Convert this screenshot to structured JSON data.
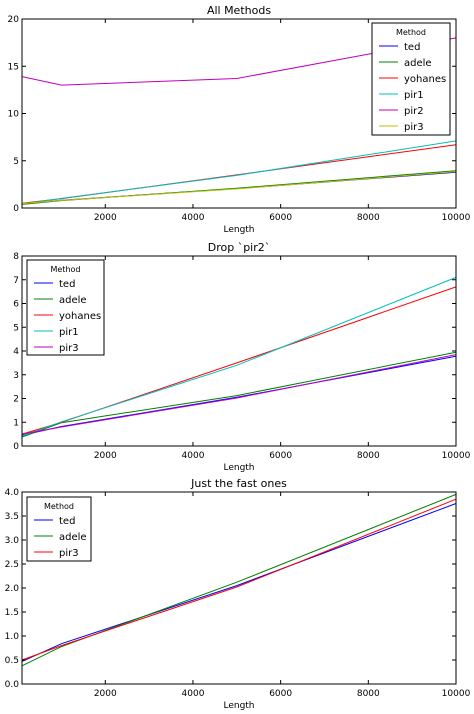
{
  "colors": {
    "ted": "#0000ff",
    "adele": "#008000",
    "yohanes": "#ff0000",
    "pir1": "#00bfbf",
    "pir2": "#bf00bf",
    "pir3": "#bfbf00",
    "pir3_alt": "#bf00bf",
    "pir3_fast": "#ff0000"
  },
  "chart_data": [
    {
      "type": "line",
      "title": "All Methods",
      "xlabel": "Length",
      "ylabel": "",
      "xlim": [
        100,
        10000
      ],
      "ylim": [
        0,
        20
      ],
      "xticks": [
        2000,
        4000,
        6000,
        8000,
        10000
      ],
      "yticks": [
        0,
        5,
        10,
        15,
        20
      ],
      "legend": {
        "title": "Method",
        "placement": "top-right"
      },
      "x": [
        100,
        1000,
        5000,
        10000
      ],
      "series": [
        {
          "name": "ted",
          "color": "#0000ff",
          "values": [
            0.45,
            0.82,
            2.05,
            3.78
          ]
        },
        {
          "name": "adele",
          "color": "#008000",
          "values": [
            0.38,
            0.78,
            2.1,
            3.95
          ]
        },
        {
          "name": "yohanes",
          "color": "#ff0000",
          "values": [
            0.5,
            1.0,
            3.5,
            6.7
          ]
        },
        {
          "name": "pir1",
          "color": "#00bfbf",
          "values": [
            0.42,
            1.02,
            3.45,
            7.1
          ]
        },
        {
          "name": "pir2",
          "color": "#bf00bf",
          "values": [
            13.9,
            13.0,
            13.7,
            18.0
          ]
        },
        {
          "name": "pir3",
          "color": "#bfbf00",
          "values": [
            0.48,
            0.8,
            2.02,
            3.85
          ]
        }
      ]
    },
    {
      "type": "line",
      "title": "Drop `pir2`",
      "xlabel": "Length",
      "ylabel": "",
      "xlim": [
        100,
        10000
      ],
      "ylim": [
        0,
        8
      ],
      "xticks": [
        2000,
        4000,
        6000,
        8000,
        10000
      ],
      "yticks": [
        0,
        1,
        2,
        3,
        4,
        5,
        6,
        7,
        8
      ],
      "legend": {
        "title": "Method",
        "placement": "top-left"
      },
      "x": [
        100,
        1000,
        5000,
        10000
      ],
      "series": [
        {
          "name": "ted",
          "color": "#0000ff",
          "values": [
            0.45,
            0.82,
            2.05,
            3.78
          ]
        },
        {
          "name": "adele",
          "color": "#008000",
          "values": [
            0.38,
            0.98,
            2.12,
            3.95
          ]
        },
        {
          "name": "yohanes",
          "color": "#ff0000",
          "values": [
            0.5,
            1.0,
            3.5,
            6.7
          ]
        },
        {
          "name": "pir1",
          "color": "#00bfbf",
          "values": [
            0.42,
            1.02,
            3.4,
            7.1
          ]
        },
        {
          "name": "pir3",
          "color": "#bf00bf",
          "values": [
            0.5,
            0.8,
            2.02,
            3.85
          ]
        }
      ]
    },
    {
      "type": "line",
      "title": "Just the fast ones",
      "xlabel": "Length",
      "ylabel": "",
      "xlim": [
        100,
        10000
      ],
      "ylim": [
        0,
        4
      ],
      "xticks": [
        2000,
        4000,
        6000,
        8000,
        10000
      ],
      "yticks": [
        0.0,
        0.5,
        1.0,
        1.5,
        2.0,
        2.5,
        3.0,
        3.5,
        4.0
      ],
      "yticklabels": [
        "0.0",
        "0.5",
        "1.0",
        "1.5",
        "2.0",
        "2.5",
        "3.0",
        "3.5",
        "4.0"
      ],
      "legend": {
        "title": "Method",
        "placement": "top-left"
      },
      "x": [
        100,
        1000,
        5000,
        10000
      ],
      "series": [
        {
          "name": "ted",
          "color": "#0000ff",
          "values": [
            0.47,
            0.84,
            2.05,
            3.76
          ]
        },
        {
          "name": "adele",
          "color": "#008000",
          "values": [
            0.38,
            0.78,
            2.12,
            3.95
          ]
        },
        {
          "name": "pir3",
          "color": "#ff0000",
          "values": [
            0.5,
            0.8,
            2.02,
            3.85
          ]
        }
      ]
    }
  ]
}
